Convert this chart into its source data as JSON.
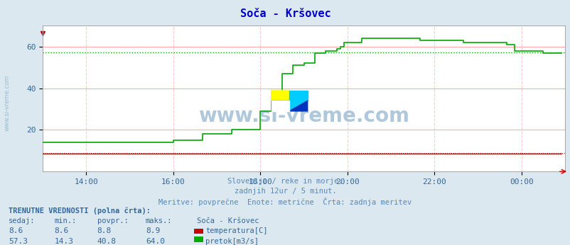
{
  "title": "Soča - Kršovec",
  "subtitle1": "Slovenija / reke in morje.",
  "subtitle2": "zadnjih 12ur / 5 minut.",
  "subtitle3": "Meritve: povprečne  Enote: metrične  Črta: zadnja meritev",
  "background_color": "#dce8f0",
  "plot_bg_color": "#ffffff",
  "grid_color_h": "#ffaaaa",
  "grid_color_v": "#ffcccc",
  "title_color": "#0000cc",
  "subtitle_color": "#5588bb",
  "text_color": "#336699",
  "watermark": "www.si-vreme.com",
  "watermark_color": "#9bbbd4",
  "left_watermark": "www.si-vreme.com",
  "xmin": 0,
  "xmax": 144,
  "ymin": 0,
  "ymax": 70,
  "yticks": [
    20,
    40,
    60
  ],
  "xtick_labels": [
    "14:00",
    "16:00",
    "18:00",
    "20:00",
    "22:00",
    "00:00"
  ],
  "xtick_positions": [
    12,
    36,
    60,
    84,
    108,
    132
  ],
  "temp_color": "#cc0000",
  "flow_color": "#00aa00",
  "avg_flow_value": 57.3,
  "avg_temp_value": 8.8,
  "temp_sedaj": 8.6,
  "temp_min": 8.6,
  "temp_povpr": 8.8,
  "temp_maks": 8.9,
  "flow_sedaj": 57.3,
  "flow_min": 14.3,
  "flow_povpr": 40.8,
  "flow_maks": 64.0,
  "bottom_text_color": "#336699",
  "flow_data": [
    14,
    14,
    14,
    14,
    14,
    14,
    14,
    14,
    14,
    14,
    14,
    14,
    14,
    14,
    14,
    14,
    14,
    14,
    14,
    14,
    14,
    14,
    14,
    14,
    14,
    14,
    14,
    14,
    14,
    14,
    14,
    14,
    14,
    14,
    14,
    14,
    15,
    15,
    15,
    15,
    15,
    15,
    15,
    15,
    18,
    18,
    18,
    18,
    18,
    18,
    18,
    18,
    20,
    20,
    20,
    20,
    20,
    20,
    20,
    20,
    29,
    29,
    29,
    39,
    39,
    39,
    47,
    47,
    47,
    51,
    51,
    51,
    52,
    52,
    52,
    57,
    57,
    57,
    58,
    58,
    58,
    59,
    60,
    62,
    62,
    62,
    62,
    62,
    64,
    64,
    64,
    64,
    64,
    64,
    64,
    64,
    64,
    64,
    64,
    64,
    64,
    64,
    64,
    64,
    63,
    63,
    63,
    63,
    63,
    63,
    63,
    63,
    63,
    63,
    63,
    63,
    62,
    62,
    62,
    62,
    62,
    62,
    62,
    62,
    62,
    62,
    62,
    62,
    61,
    61,
    58,
    58,
    58,
    58,
    58,
    58,
    58,
    58,
    57,
    57,
    57,
    57,
    57,
    57
  ],
  "temp_data": [
    8.7,
    8.7,
    8.7,
    8.7,
    8.7,
    8.7,
    8.7,
    8.7,
    8.7,
    8.7,
    8.7,
    8.7,
    8.7,
    8.7,
    8.7,
    8.7,
    8.7,
    8.7,
    8.7,
    8.7,
    8.7,
    8.7,
    8.7,
    8.7,
    8.7,
    8.7,
    8.7,
    8.7,
    8.7,
    8.7,
    8.7,
    8.7,
    8.7,
    8.7,
    8.7,
    8.7,
    8.7,
    8.7,
    8.7,
    8.7,
    8.7,
    8.7,
    8.7,
    8.7,
    8.7,
    8.7,
    8.7,
    8.7,
    8.7,
    8.7,
    8.7,
    8.7,
    8.7,
    8.7,
    8.7,
    8.7,
    8.7,
    8.7,
    8.7,
    8.7,
    8.7,
    8.7,
    8.7,
    8.7,
    8.7,
    8.7,
    8.7,
    8.7,
    8.7,
    8.7,
    8.7,
    8.7,
    8.7,
    8.7,
    8.7,
    8.7,
    8.7,
    8.7,
    8.7,
    8.7,
    8.7,
    8.7,
    8.7,
    8.7,
    8.7,
    8.7,
    8.7,
    8.7,
    8.7,
    8.7,
    8.7,
    8.7,
    8.7,
    8.7,
    8.7,
    8.7,
    8.7,
    8.7,
    8.7,
    8.7,
    8.7,
    8.7,
    8.7,
    8.7,
    8.7,
    8.7,
    8.7,
    8.7,
    8.7,
    8.7,
    8.7,
    8.7,
    8.7,
    8.7,
    8.7,
    8.7,
    8.7,
    8.7,
    8.7,
    8.7,
    8.7,
    8.7,
    8.7,
    8.7,
    8.7,
    8.7,
    8.7,
    8.7,
    8.7,
    8.7,
    8.7,
    8.7,
    8.7,
    8.7,
    8.7,
    8.7,
    8.7,
    8.7,
    8.7,
    8.7,
    8.7,
    8.7,
    8.7,
    8.7
  ]
}
